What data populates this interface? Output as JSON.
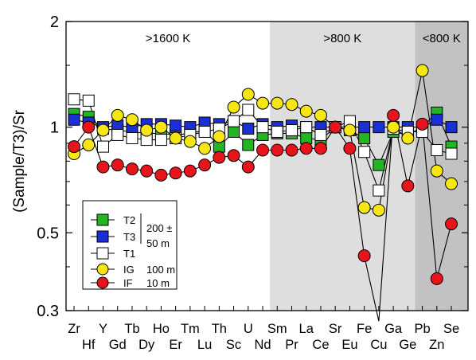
{
  "chart_data": {
    "type": "line",
    "ylabel": "(Sample/T3)/Sr",
    "y_scale": "log",
    "ylim": [
      0.3,
      2
    ],
    "y_ticks": [
      {
        "value": 0.3,
        "label": "0.3"
      },
      {
        "value": 0.5,
        "label": "0.5"
      },
      {
        "value": 1,
        "label": "1"
      },
      {
        "value": 2,
        "label": "2"
      }
    ],
    "categories": [
      "Zr",
      "Hf",
      "Y",
      "Gd",
      "Tb",
      "Dy",
      "Ho",
      "Er",
      "Tm",
      "Lu",
      "Th",
      "Sc",
      "U",
      "Nd",
      "Sm",
      "Pr",
      "La",
      "Ce",
      "Sr",
      "Eu",
      "Fe",
      "Cu",
      "Ga",
      "Ge",
      "Pb",
      "Zn",
      "Se"
    ],
    "regions": [
      {
        "label": ">1600 K",
        "from": "Zr",
        "to": "Nd",
        "color": "#ffffff"
      },
      {
        "label": ">800 K",
        "from": "Sm",
        "to": "Ge",
        "color": "#dedede"
      },
      {
        "label": "<800 K",
        "from": "Pb",
        "to": "Se",
        "color": "#c2c2c2"
      }
    ],
    "series": [
      {
        "name": "T2",
        "marker": "square",
        "color": "#22b722",
        "values": [
          1.09,
          1.07,
          0.99,
          0.98,
          0.97,
          0.96,
          0.96,
          0.95,
          0.96,
          0.98,
          0.88,
          0.97,
          0.89,
          0.95,
          0.96,
          0.96,
          0.93,
          0.92,
          1.0,
          0.98,
          0.93,
          0.78,
          0.97,
          0.95,
          1.0,
          1.1,
          0.88
        ]
      },
      {
        "name": "T3",
        "marker": "square",
        "color": "#1a2fd6",
        "values": [
          1.05,
          1.03,
          1.0,
          1.01,
          1.0,
          1.02,
          1.02,
          1.01,
          1.0,
          1.03,
          1.02,
          1.04,
          0.99,
          1.02,
          1.0,
          1.01,
          1.0,
          1.0,
          1.0,
          1.0,
          1.0,
          1.0,
          1.0,
          1.0,
          1.0,
          1.05,
          1.0
        ]
      },
      {
        "name": "T1",
        "marker": "square",
        "color": "#ffffff",
        "values": [
          1.2,
          1.19,
          0.88,
          0.95,
          0.93,
          0.92,
          0.92,
          0.93,
          0.95,
          0.97,
          0.99,
          1.04,
          1.12,
          1.0,
          0.97,
          0.98,
          1.0,
          0.95,
          1.0,
          1.04,
          0.85,
          0.66,
          0.99,
          0.97,
          0.97,
          0.86,
          0.84
        ]
      },
      {
        "name": "IG",
        "marker": "circle",
        "color": "#f5e614",
        "values": [
          0.84,
          0.89,
          0.98,
          1.08,
          1.05,
          0.98,
          1.0,
          0.93,
          0.91,
          0.87,
          0.94,
          1.14,
          1.24,
          1.17,
          1.17,
          1.16,
          1.11,
          1.08,
          1.0,
          0.98,
          0.59,
          0.58,
          1.0,
          0.93,
          1.45,
          0.75,
          0.69
        ]
      },
      {
        "name": "IF",
        "marker": "circle",
        "color": "#e8141b",
        "values": [
          0.88,
          1.0,
          0.77,
          0.78,
          0.76,
          0.75,
          0.73,
          0.74,
          0.75,
          0.78,
          0.82,
          0.83,
          0.77,
          0.86,
          0.86,
          0.86,
          0.87,
          0.87,
          1.0,
          0.87,
          0.43,
          0.28,
          1.08,
          0.68,
          1.02,
          0.37,
          0.53
        ]
      }
    ],
    "legend": {
      "placement": "bottom-left",
      "group_label_lines": [
        "200 ±",
        "50 m"
      ],
      "ig_label": "100 m",
      "if_label": "10 m"
    }
  }
}
